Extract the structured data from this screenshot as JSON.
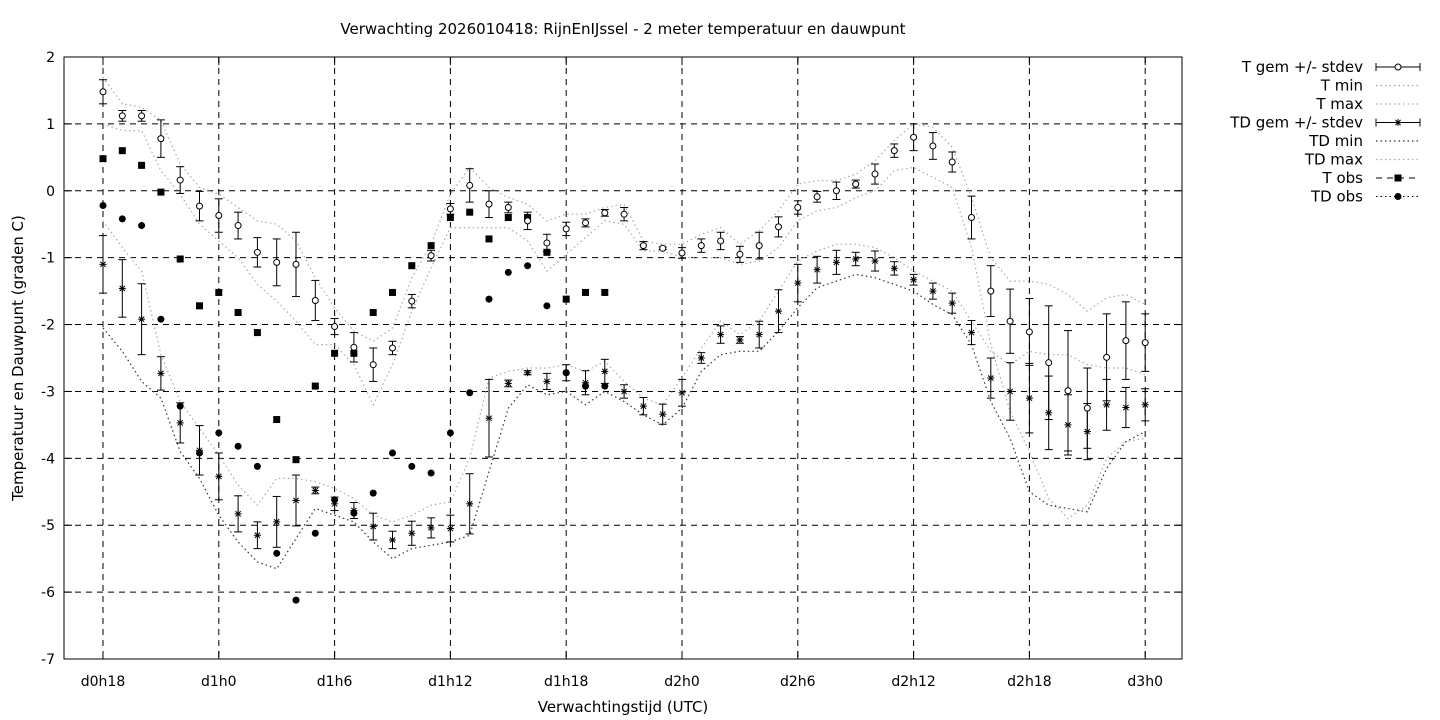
{
  "chart_data": {
    "type": "line",
    "title": "Verwachting 2026010418: RijnEnIJssel - 2 meter temperatuur en dauwpunt",
    "xlabel": "Verwachtingstijd (UTC)",
    "ylabel": "Temperatuur en Dauwpunt (graden C)",
    "xlim": [
      -1,
      57
    ],
    "ylim": [
      -7,
      2
    ],
    "x_unit": "hours since d0h18",
    "xticks": [
      {
        "x": 0,
        "label": "d0h18"
      },
      {
        "x": 6,
        "label": "d1h0"
      },
      {
        "x": 12,
        "label": "d1h6"
      },
      {
        "x": 18,
        "label": "d1h12"
      },
      {
        "x": 24,
        "label": "d1h18"
      },
      {
        "x": 30,
        "label": "d2h0"
      },
      {
        "x": 36,
        "label": "d2h6"
      },
      {
        "x": 42,
        "label": "d2h12"
      },
      {
        "x": 48,
        "label": "d2h18"
      },
      {
        "x": 54,
        "label": "d3h0"
      }
    ],
    "yticks": [
      2,
      1,
      0,
      -1,
      -2,
      -3,
      -4,
      -5,
      -6,
      -7
    ],
    "grid": true,
    "legend_position": "right-outside",
    "legend": [
      {
        "label": "T gem +/- stdev",
        "style": "errorbar-circle"
      },
      {
        "label": "T min",
        "style": "dotted"
      },
      {
        "label": "T max",
        "style": "dotted"
      },
      {
        "label": "TD gem +/- stdev",
        "style": "errorbar-star"
      },
      {
        "label": "TD min",
        "style": "dotted-dark"
      },
      {
        "label": "TD max",
        "style": "dotted"
      },
      {
        "label": "T obs",
        "style": "square"
      },
      {
        "label": "TD obs",
        "style": "dot"
      }
    ],
    "series": [
      {
        "name": "T gem +/- stdev",
        "x": [
          0,
          1,
          2,
          3,
          4,
          5,
          6,
          7,
          8,
          9,
          10,
          11,
          12,
          13,
          14,
          15,
          16,
          17,
          18,
          19,
          20,
          21,
          22,
          23,
          24,
          25,
          26,
          27,
          28,
          29,
          30,
          31,
          32,
          33,
          34,
          35,
          36,
          37,
          38,
          39,
          40,
          41,
          42,
          43,
          44,
          45,
          46,
          47,
          48,
          49,
          50,
          51,
          52,
          53,
          54
        ],
        "y": [
          1.48,
          1.12,
          1.12,
          0.78,
          0.16,
          -0.23,
          -0.37,
          -0.52,
          -0.92,
          -1.07,
          -1.1,
          -1.64,
          -2.03,
          -2.34,
          -2.6,
          -2.35,
          -1.65,
          -0.97,
          -0.27,
          0.08,
          -0.2,
          -0.25,
          -0.45,
          -0.78,
          -0.57,
          -0.48,
          -0.33,
          -0.35,
          -0.82,
          -0.86,
          -0.93,
          -0.82,
          -0.75,
          -0.95,
          -0.82,
          -0.54,
          -0.25,
          -0.09,
          0.0,
          0.1,
          0.25,
          0.6,
          0.8,
          0.67,
          0.43,
          -0.4,
          -1.5,
          -1.95,
          -2.11,
          -2.57,
          -2.99,
          -3.25,
          -2.49,
          -2.24,
          -2.27
        ],
        "stdev": [
          0.18,
          0.08,
          0.08,
          0.28,
          0.2,
          0.22,
          0.25,
          0.2,
          0.22,
          0.35,
          0.48,
          0.3,
          0.12,
          0.22,
          0.25,
          0.1,
          0.1,
          0.08,
          0.08,
          0.25,
          0.2,
          0.08,
          0.13,
          0.13,
          0.1,
          0.06,
          0.05,
          0.1,
          0.06,
          0.02,
          0.08,
          0.1,
          0.13,
          0.12,
          0.2,
          0.15,
          0.1,
          0.08,
          0.13,
          0.06,
          0.15,
          0.1,
          0.2,
          0.2,
          0.15,
          0.32,
          0.38,
          0.48,
          0.5,
          0.85,
          0.9,
          0.6,
          0.65,
          0.58,
          0.43
        ]
      },
      {
        "name": "T min",
        "x": [
          0,
          1,
          2,
          3,
          4,
          5,
          6,
          7,
          8,
          9,
          10,
          11,
          12,
          13,
          14,
          15,
          16,
          17,
          18,
          19,
          20,
          21,
          22,
          23,
          24,
          25,
          26,
          27,
          28,
          29,
          30,
          31,
          32,
          33,
          34,
          35,
          36,
          37,
          38,
          39,
          40,
          41,
          42,
          43,
          44,
          45,
          46,
          47,
          48,
          49,
          50,
          51,
          52,
          53,
          54
        ],
        "y": [
          1.0,
          0.9,
          0.9,
          0.3,
          -0.05,
          -0.5,
          -0.75,
          -1.0,
          -1.4,
          -1.65,
          -1.95,
          -2.3,
          -2.3,
          -2.6,
          -3.2,
          -2.6,
          -1.8,
          -1.15,
          -0.55,
          -0.55,
          -0.55,
          -0.55,
          -0.75,
          -1.2,
          -0.95,
          -0.7,
          -0.45,
          -0.5,
          -0.9,
          -0.9,
          -1.0,
          -1.0,
          -1.0,
          -1.1,
          -1.05,
          -0.85,
          -0.45,
          -0.3,
          -0.25,
          -0.1,
          0.0,
          0.3,
          0.35,
          0.2,
          0.05,
          -0.85,
          -2.3,
          -3.3,
          -3.9,
          -4.6,
          -4.9,
          -4.7,
          -4.0,
          -3.75,
          -3.7
        ]
      },
      {
        "name": "T max",
        "x": [
          0,
          1,
          2,
          3,
          4,
          5,
          6,
          7,
          8,
          9,
          10,
          11,
          12,
          13,
          14,
          15,
          16,
          17,
          18,
          19,
          20,
          21,
          22,
          23,
          24,
          25,
          26,
          27,
          28,
          29,
          30,
          31,
          32,
          33,
          34,
          35,
          36,
          37,
          38,
          39,
          40,
          41,
          42,
          43,
          44,
          45,
          46,
          47,
          48,
          49,
          50,
          51,
          52,
          53,
          54
        ],
        "y": [
          1.7,
          1.3,
          1.25,
          1.05,
          0.4,
          0.05,
          -0.05,
          -0.25,
          -0.45,
          -0.5,
          -0.75,
          -1.3,
          -1.75,
          -2.1,
          -2.25,
          -2.05,
          -1.3,
          -0.8,
          -0.05,
          0.35,
          0.05,
          -0.1,
          -0.2,
          -0.45,
          -0.35,
          -0.35,
          -0.25,
          -0.2,
          -0.75,
          -0.8,
          -0.8,
          -0.65,
          -0.55,
          -0.8,
          -0.6,
          -0.3,
          0.1,
          0.15,
          0.15,
          0.25,
          0.45,
          0.75,
          1.0,
          0.95,
          0.65,
          -0.1,
          -1.0,
          -1.35,
          -1.35,
          -1.4,
          -1.55,
          -1.8,
          -1.6,
          -1.55,
          -1.7
        ]
      },
      {
        "name": "TD gem +/- stdev",
        "x": [
          0,
          1,
          2,
          3,
          4,
          5,
          6,
          7,
          8,
          9,
          10,
          11,
          12,
          13,
          14,
          15,
          16,
          17,
          18,
          19,
          20,
          21,
          22,
          23,
          24,
          25,
          26,
          27,
          28,
          29,
          30,
          31,
          32,
          33,
          34,
          35,
          36,
          37,
          38,
          39,
          40,
          41,
          42,
          43,
          44,
          45,
          46,
          47,
          48,
          49,
          50,
          51,
          52,
          53,
          54
        ],
        "y": [
          -1.1,
          -1.46,
          -1.92,
          -2.73,
          -3.47,
          -3.88,
          -4.27,
          -4.83,
          -5.15,
          -4.95,
          -4.63,
          -4.48,
          -4.68,
          -4.78,
          -5.02,
          -5.22,
          -5.12,
          -5.04,
          -5.05,
          -4.68,
          -3.4,
          -2.88,
          -2.72,
          -2.85,
          -2.72,
          -2.87,
          -2.7,
          -3.0,
          -3.22,
          -3.34,
          -3.02,
          -2.5,
          -2.15,
          -2.23,
          -2.15,
          -1.8,
          -1.38,
          -1.18,
          -1.07,
          -1.02,
          -1.05,
          -1.16,
          -1.33,
          -1.5,
          -1.68,
          -2.12,
          -2.8,
          -3.0,
          -3.1,
          -3.32,
          -3.5,
          -3.6,
          -3.2,
          -3.24,
          -3.2
        ],
        "stdev": [
          0.43,
          0.43,
          0.53,
          0.25,
          0.3,
          0.37,
          0.35,
          0.27,
          0.2,
          0.38,
          0.38,
          0.05,
          0.1,
          0.12,
          0.2,
          0.13,
          0.18,
          0.15,
          0.2,
          0.45,
          0.58,
          0.05,
          0.03,
          0.12,
          0.12,
          0.18,
          0.18,
          0.1,
          0.13,
          0.15,
          0.2,
          0.08,
          0.13,
          0.05,
          0.2,
          0.32,
          0.28,
          0.2,
          0.18,
          0.1,
          0.15,
          0.1,
          0.08,
          0.12,
          0.15,
          0.18,
          0.3,
          0.43,
          0.52,
          0.55,
          0.45,
          0.42,
          0.38,
          0.3,
          0.24
        ]
      },
      {
        "name": "TD min",
        "x": [
          0,
          1,
          2,
          3,
          4,
          5,
          6,
          7,
          8,
          9,
          10,
          11,
          12,
          13,
          14,
          15,
          16,
          17,
          18,
          19,
          20,
          21,
          22,
          23,
          24,
          25,
          26,
          27,
          28,
          29,
          30,
          31,
          32,
          33,
          34,
          35,
          36,
          37,
          38,
          39,
          40,
          41,
          42,
          43,
          44,
          45,
          46,
          47,
          48,
          49,
          50,
          51,
          52,
          53,
          54
        ],
        "y": [
          -2.05,
          -2.4,
          -2.85,
          -3.1,
          -3.9,
          -4.3,
          -4.85,
          -5.25,
          -5.55,
          -5.65,
          -5.2,
          -4.75,
          -4.85,
          -4.95,
          -5.25,
          -5.5,
          -5.35,
          -5.3,
          -5.25,
          -5.15,
          -4.2,
          -3.25,
          -2.9,
          -3.05,
          -3.0,
          -3.2,
          -3.0,
          -3.15,
          -3.35,
          -3.5,
          -3.25,
          -2.7,
          -2.45,
          -2.4,
          -2.4,
          -2.1,
          -1.75,
          -1.45,
          -1.35,
          -1.25,
          -1.3,
          -1.4,
          -1.5,
          -1.7,
          -1.85,
          -2.3,
          -3.15,
          -3.7,
          -4.5,
          -4.7,
          -4.75,
          -4.8,
          -4.15,
          -3.75,
          -3.6
        ]
      },
      {
        "name": "TD max",
        "x": [
          0,
          1,
          2,
          3,
          4,
          5,
          6,
          7,
          8,
          9,
          10,
          11,
          12,
          13,
          14,
          15,
          16,
          17,
          18,
          19,
          20,
          21,
          22,
          23,
          24,
          25,
          26,
          27,
          28,
          29,
          30,
          31,
          32,
          33,
          34,
          35,
          36,
          37,
          38,
          39,
          40,
          41,
          42,
          43,
          44,
          45,
          46,
          47,
          48,
          49,
          50,
          51,
          52,
          53,
          54
        ],
        "y": [
          -0.45,
          -0.85,
          -1.2,
          -2.45,
          -3.15,
          -3.55,
          -3.95,
          -4.4,
          -4.7,
          -4.3,
          -4.3,
          -4.35,
          -4.45,
          -4.6,
          -4.85,
          -4.95,
          -4.85,
          -4.7,
          -4.65,
          -4.0,
          -2.8,
          -2.7,
          -2.65,
          -2.65,
          -2.6,
          -2.7,
          -2.55,
          -2.85,
          -3.1,
          -3.2,
          -2.8,
          -2.35,
          -1.95,
          -2.15,
          -1.95,
          -1.5,
          -1.05,
          -0.9,
          -0.8,
          -0.8,
          -0.85,
          -1.0,
          -1.2,
          -1.35,
          -1.5,
          -1.95,
          -2.4,
          -2.6,
          -2.4,
          -2.45,
          -2.45,
          -2.6,
          -2.65,
          -2.65,
          -2.75
        ]
      },
      {
        "name": "T obs",
        "x": [
          0,
          1,
          2,
          3,
          4,
          5,
          6,
          7,
          8,
          9,
          10,
          11,
          12,
          13,
          14,
          15,
          16,
          17,
          18,
          19,
          20,
          21,
          22,
          23,
          24,
          25,
          26
        ],
        "y": [
          0.48,
          0.6,
          0.38,
          -0.02,
          -1.02,
          -1.72,
          -1.52,
          -1.82,
          -2.12,
          -3.42,
          -4.02,
          -2.92,
          -2.43,
          -2.43,
          -1.82,
          -1.52,
          -1.12,
          -0.82,
          -0.4,
          -0.32,
          -0.72,
          -0.4,
          -0.4,
          -0.92,
          -1.62,
          -1.52,
          -1.52
        ]
      },
      {
        "name": "TD obs",
        "x": [
          0,
          1,
          2,
          3,
          4,
          5,
          6,
          7,
          8,
          9,
          10,
          11,
          12,
          13,
          14,
          15,
          16,
          17,
          18,
          19,
          20,
          21,
          22,
          23,
          24,
          25,
          26
        ],
        "y": [
          -0.22,
          -0.42,
          -0.52,
          -1.92,
          -3.22,
          -3.92,
          -3.62,
          -3.82,
          -4.12,
          -5.42,
          -6.12,
          -5.12,
          -4.62,
          -4.82,
          -4.52,
          -3.92,
          -4.12,
          -4.22,
          -3.62,
          -3.02,
          -1.62,
          -1.22,
          -1.12,
          -1.72,
          -2.72,
          -2.92,
          -2.92
        ]
      }
    ]
  }
}
